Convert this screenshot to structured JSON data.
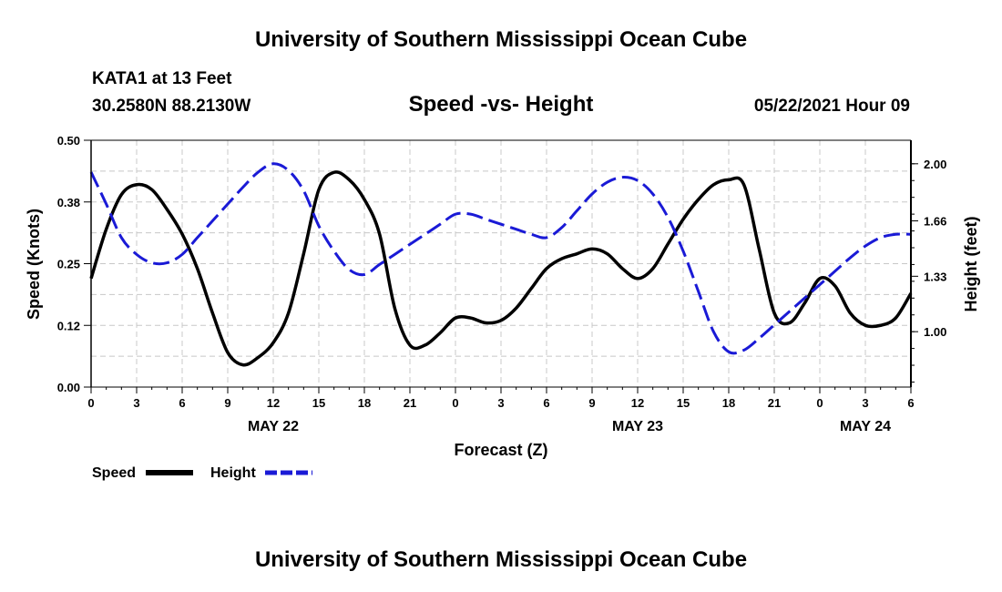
{
  "header": {
    "title": "University of Southern Mississippi Ocean Cube",
    "station": "KATA1 at 13 Feet",
    "coords": "30.2580N  88.2130W",
    "subtitle": "Speed -vs- Height",
    "datetime": "05/22/2021 Hour 09"
  },
  "footer": {
    "title": "University of Southern Mississippi Ocean Cube"
  },
  "colors": {
    "speed": "#000000",
    "height": "#1a1ad6",
    "grid": "#c8c8c8"
  },
  "chart_data": {
    "type": "line",
    "title": "Speed -vs- Height",
    "xlabel": "Forecast (Z)",
    "ylabel": "Speed (Knots)",
    "y2label": "Height (feet)",
    "x_hours_range": [
      0,
      54
    ],
    "x_ticks": [
      {
        "h": 0,
        "label": "0"
      },
      {
        "h": 3,
        "label": "3"
      },
      {
        "h": 6,
        "label": "6"
      },
      {
        "h": 9,
        "label": "9"
      },
      {
        "h": 12,
        "label": "12"
      },
      {
        "h": 15,
        "label": "15"
      },
      {
        "h": 18,
        "label": "18"
      },
      {
        "h": 21,
        "label": "21"
      },
      {
        "h": 24,
        "label": "0"
      },
      {
        "h": 27,
        "label": "3"
      },
      {
        "h": 30,
        "label": "6"
      },
      {
        "h": 33,
        "label": "9"
      },
      {
        "h": 36,
        "label": "12"
      },
      {
        "h": 39,
        "label": "15"
      },
      {
        "h": 42,
        "label": "18"
      },
      {
        "h": 45,
        "label": "21"
      },
      {
        "h": 48,
        "label": "0"
      },
      {
        "h": 51,
        "label": "3"
      },
      {
        "h": 54,
        "label": "6"
      }
    ],
    "date_labels": [
      {
        "h": 12,
        "label": "MAY 22"
      },
      {
        "h": 36,
        "label": "MAY 23"
      },
      {
        "h": 51,
        "label": "MAY 24"
      }
    ],
    "y_range": [
      0,
      0.5
    ],
    "y_ticks": [
      {
        "v": 0,
        "label": "0.00"
      },
      {
        "v": 0.125,
        "label": "0.12"
      },
      {
        "v": 0.25,
        "label": "0.25"
      },
      {
        "v": 0.375,
        "label": "0.38"
      },
      {
        "v": 0.5,
        "label": "0.50"
      }
    ],
    "y2_range": [
      0.67,
      2.14
    ],
    "y2_ticks": [
      {
        "v": 1.0,
        "label": "1.00"
      },
      {
        "v": 1.33,
        "label": "1.33"
      },
      {
        "v": 1.66,
        "label": "1.66"
      },
      {
        "v": 2.0,
        "label": "2.00"
      }
    ],
    "series": [
      {
        "name": "Speed",
        "axis": "left",
        "style": "solid",
        "x": [
          0,
          1,
          2,
          3,
          4,
          5,
          6,
          7,
          8,
          9,
          10,
          11,
          12,
          13,
          14,
          15,
          16,
          17,
          18,
          19,
          20,
          21,
          22,
          23,
          24,
          25,
          26,
          27,
          28,
          29,
          30,
          31,
          32,
          33,
          34,
          35,
          36,
          37,
          38,
          39,
          40,
          41,
          42,
          43,
          44,
          45,
          46,
          47,
          48,
          49,
          50,
          51,
          52,
          53,
          54
        ],
        "values": [
          0.22,
          0.32,
          0.39,
          0.41,
          0.4,
          0.36,
          0.31,
          0.24,
          0.15,
          0.07,
          0.045,
          0.06,
          0.09,
          0.15,
          0.27,
          0.4,
          0.435,
          0.42,
          0.38,
          0.31,
          0.16,
          0.085,
          0.085,
          0.11,
          0.14,
          0.14,
          0.13,
          0.135,
          0.16,
          0.2,
          0.24,
          0.26,
          0.27,
          0.28,
          0.27,
          0.24,
          0.22,
          0.24,
          0.29,
          0.34,
          0.38,
          0.41,
          0.42,
          0.41,
          0.28,
          0.15,
          0.13,
          0.17,
          0.22,
          0.205,
          0.15,
          0.125,
          0.125,
          0.14,
          0.19
        ]
      },
      {
        "name": "Height",
        "axis": "right",
        "style": "dashed",
        "x": [
          0,
          1,
          2,
          3,
          4,
          5,
          6,
          7,
          8,
          9,
          10,
          11,
          12,
          13,
          14,
          15,
          16,
          17,
          18,
          19,
          20,
          21,
          22,
          23,
          24,
          25,
          26,
          27,
          28,
          29,
          30,
          31,
          32,
          33,
          34,
          35,
          36,
          37,
          38,
          39,
          40,
          41,
          42,
          43,
          44,
          45,
          46,
          47,
          48,
          49,
          50,
          51,
          52,
          53,
          54
        ],
        "values": [
          1.95,
          1.76,
          1.56,
          1.46,
          1.41,
          1.41,
          1.46,
          1.56,
          1.66,
          1.76,
          1.86,
          1.95,
          2.0,
          1.96,
          1.84,
          1.63,
          1.48,
          1.37,
          1.34,
          1.4,
          1.46,
          1.52,
          1.58,
          1.64,
          1.7,
          1.7,
          1.67,
          1.64,
          1.61,
          1.58,
          1.56,
          1.62,
          1.72,
          1.82,
          1.89,
          1.92,
          1.9,
          1.82,
          1.68,
          1.48,
          1.24,
          1.0,
          0.88,
          0.89,
          0.96,
          1.04,
          1.12,
          1.2,
          1.28,
          1.36,
          1.44,
          1.51,
          1.56,
          1.58,
          1.58
        ]
      }
    ]
  }
}
